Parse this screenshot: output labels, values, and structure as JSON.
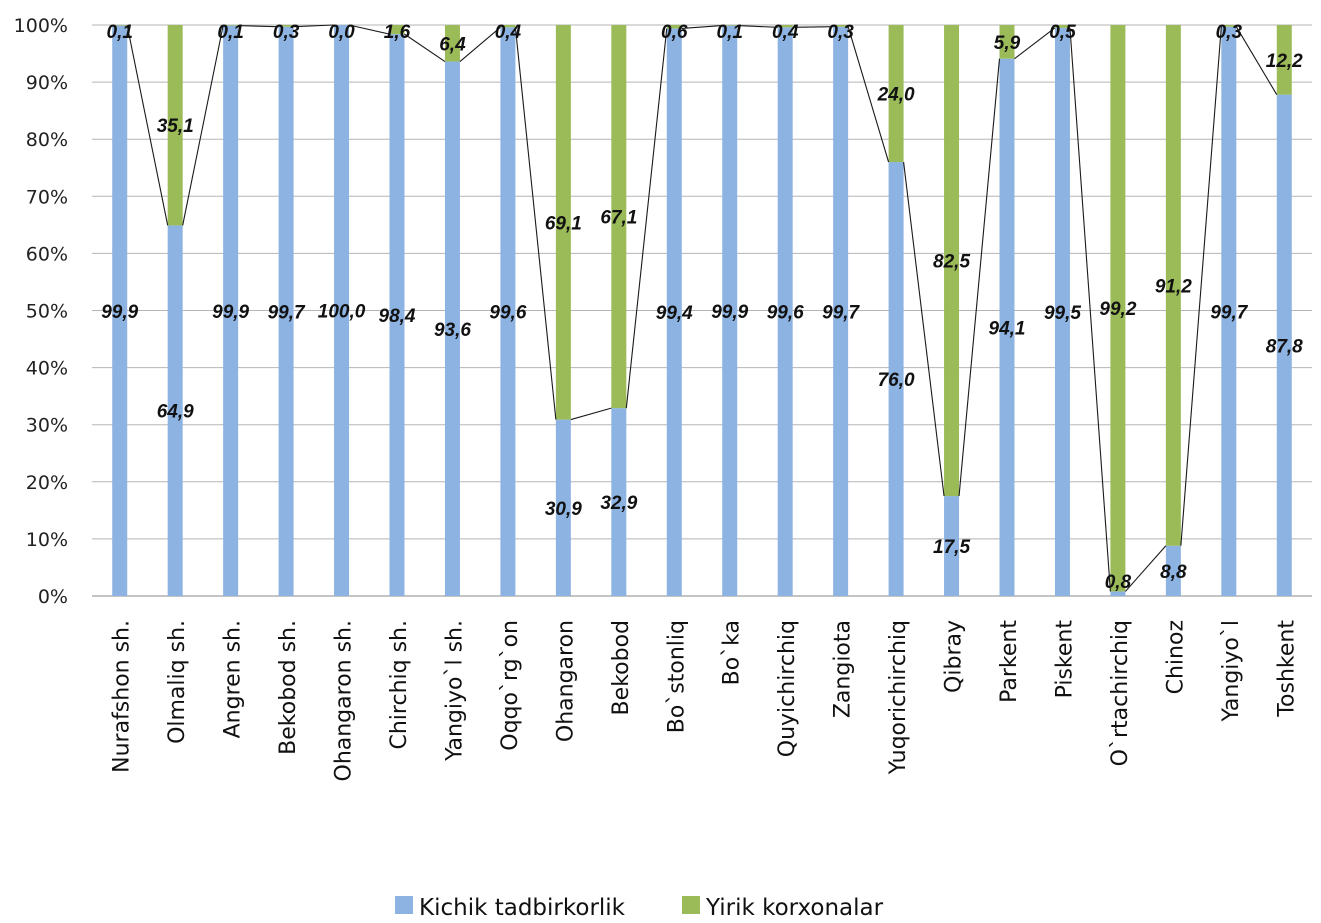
{
  "chart_data": {
    "type": "bar",
    "stacked": "percent",
    "categories": [
      "Nurafshon sh.",
      "Olmaliq sh.",
      "Angren sh.",
      "Bekobod sh.",
      "Ohangaron sh.",
      "Chirchiq sh.",
      "Yangiyo`l sh.",
      "Oqqo`rg`on",
      "Ohangaron",
      "Bekobod",
      "Bo`stonliq",
      "Bo`ka",
      "Quyichirchiq",
      "Zangiota",
      "Yuqorichirchiq",
      "Qibray",
      "Parkent",
      "Piskent",
      "O`rtachirchiq",
      "Chinoz",
      "Yangiyo`l",
      "Toshkent"
    ],
    "series": [
      {
        "name": "Kichik tadbirkorlik",
        "color": "#8db3e2",
        "values": [
          99.9,
          64.9,
          99.9,
          99.7,
          100.0,
          98.4,
          93.6,
          99.6,
          30.9,
          32.9,
          99.4,
          99.9,
          99.6,
          99.7,
          76.0,
          17.5,
          94.1,
          99.5,
          0.8,
          8.8,
          99.7,
          87.8
        ],
        "labels": [
          "99,9",
          "64,9",
          "99,9",
          "99,7",
          "100,0",
          "98,4",
          "93,6",
          "99,6",
          "30,9",
          "32,9",
          "99,4",
          "99,9",
          "99,6",
          "99,7",
          "76,0",
          "17,5",
          "94,1",
          "99,5",
          "0,8",
          "8,8",
          "99,7",
          "87,8"
        ]
      },
      {
        "name": "Yirik korxonalar",
        "color": "#9bbb59",
        "values": [
          0.1,
          35.1,
          0.1,
          0.3,
          0.0,
          1.6,
          6.4,
          0.4,
          69.1,
          67.1,
          0.6,
          0.1,
          0.4,
          0.3,
          24.0,
          82.5,
          5.9,
          0.5,
          99.2,
          91.2,
          0.3,
          12.2
        ],
        "labels": [
          "0,1",
          "35,1",
          "0,1",
          "0,3",
          "0,0",
          "1,6",
          "6,4",
          "0,4",
          "69,1",
          "67,1",
          "0,6",
          "0,1",
          "0,4",
          "0,3",
          "24,0",
          "82,5",
          "5,9",
          "0,5",
          "99,2",
          "91,2",
          "0,3",
          "12,2"
        ]
      }
    ],
    "yticks": [
      "0%",
      "10%",
      "20%",
      "30%",
      "40%",
      "50%",
      "60%",
      "70%",
      "80%",
      "90%",
      "100%"
    ],
    "ylim": [
      0,
      100
    ],
    "grid": true,
    "legend_position": "bottom",
    "connector_line": true
  }
}
